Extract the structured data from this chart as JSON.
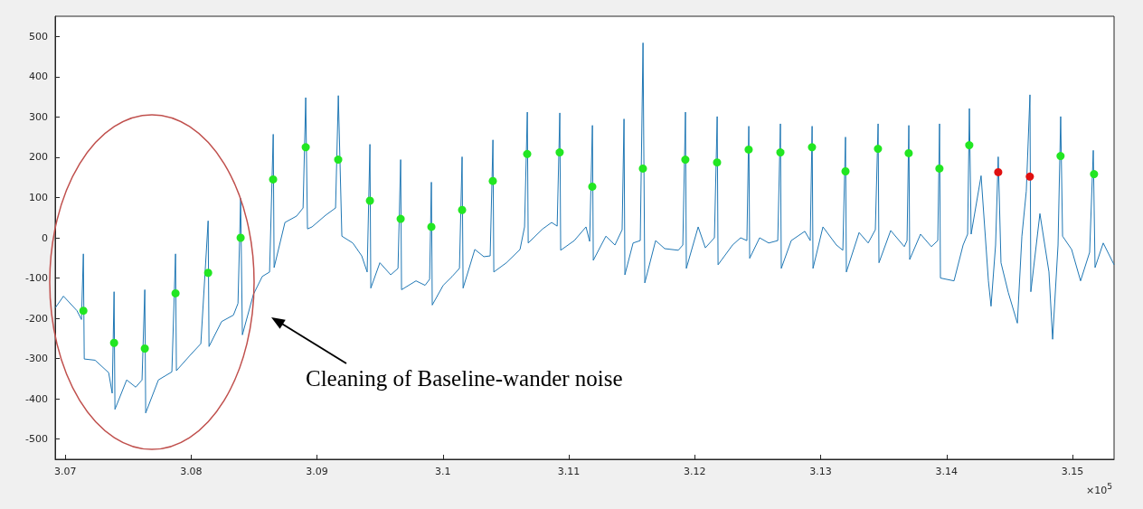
{
  "chart_data": {
    "type": "line",
    "xlim": [
      3.0692,
      3.1533
    ],
    "ylim": [
      -550,
      550
    ],
    "xticks": [
      3.07,
      3.08,
      3.09,
      3.1,
      3.11,
      3.12,
      3.13,
      3.14,
      3.15
    ],
    "yticks": [
      -500,
      -400,
      -300,
      -200,
      -100,
      0,
      100,
      200,
      300,
      400,
      500
    ],
    "grid": false,
    "annotations": [
      "×10$^{5}$",
      "Cleaning of Baseline-wander noise"
    ],
    "series": [
      {
        "marker": "none",
        "color": "#1f77b4",
        "x": [
          3.06921,
          3.06986,
          3.07093,
          3.07129,
          3.07144,
          3.07151,
          3.07237,
          3.07345,
          3.07373,
          3.07388,
          3.07395,
          3.07488,
          3.0756,
          3.0761,
          3.07632,
          3.07639,
          3.0774,
          3.07847,
          3.07876,
          3.07883,
          3.07991,
          3.08077,
          3.08135,
          3.08142,
          3.08242,
          3.08336,
          3.08372,
          3.08393,
          3.08407,
          3.08494,
          3.08565,
          3.08623,
          3.08652,
          3.08659,
          3.08745,
          3.08838,
          3.08889,
          3.0891,
          3.08924,
          3.0896,
          3.09068,
          3.09147,
          3.09169,
          3.09197,
          3.09284,
          3.09355,
          3.09398,
          3.0942,
          3.09427,
          3.09499,
          3.09585,
          3.09643,
          3.09664,
          3.09671,
          3.09786,
          3.09858,
          3.09894,
          3.09908,
          3.09915,
          3.10002,
          3.10073,
          3.10131,
          3.10152,
          3.1016,
          3.10253,
          3.10325,
          3.10375,
          3.10397,
          3.10404,
          3.10504,
          3.10612,
          3.10648,
          3.1067,
          3.10677,
          3.10792,
          3.10863,
          3.10907,
          3.10928,
          3.10935,
          3.11043,
          3.11136,
          3.11165,
          3.11187,
          3.11194,
          3.11294,
          3.11366,
          3.11423,
          3.11438,
          3.11445,
          3.1151,
          3.11567,
          3.11589,
          3.11603,
          3.11689,
          3.11761,
          3.11869,
          3.11905,
          3.11926,
          3.11933,
          3.12027,
          3.12084,
          3.12156,
          3.12178,
          3.12185,
          3.123,
          3.12364,
          3.12414,
          3.12429,
          3.12436,
          3.12515,
          3.12587,
          3.12659,
          3.1268,
          3.12687,
          3.12766,
          3.12874,
          3.12917,
          3.12932,
          3.12939,
          3.13018,
          3.13125,
          3.13176,
          3.13197,
          3.13204,
          3.13305,
          3.13377,
          3.13434,
          3.13456,
          3.13463,
          3.13556,
          3.13664,
          3.13686,
          3.137,
          3.13707,
          3.13793,
          3.13879,
          3.1393,
          3.13944,
          3.13951,
          3.14059,
          3.14131,
          3.14167,
          3.14181,
          3.14195,
          3.14274,
          3.14332,
          3.14353,
          3.14389,
          3.1441,
          3.14432,
          3.1449,
          3.14562,
          3.14598,
          3.14633,
          3.14662,
          3.14669,
          3.14741,
          3.14813,
          3.14842,
          3.14885,
          3.14906,
          3.14921,
          3.14993,
          3.15064,
          3.15136,
          3.15165,
          3.15179,
          3.15244,
          3.1533
        ],
        "values": [
          -174,
          -145,
          -181,
          -203,
          -40,
          -301,
          -304,
          -335,
          -386,
          -134,
          -426,
          -353,
          -371,
          -353,
          -129,
          -435,
          -353,
          -333,
          -40,
          -330,
          -292,
          -263,
          42,
          -270,
          -208,
          -192,
          -163,
          98,
          -241,
          -141,
          -96,
          -85,
          257,
          -74,
          38,
          54,
          74,
          348,
          22,
          27,
          56,
          74,
          353,
          4,
          -13,
          -45,
          -85,
          232,
          -125,
          -62,
          -92,
          -76,
          194,
          -129,
          -107,
          -118,
          -103,
          138,
          -167,
          -118,
          -96,
          -76,
          201,
          -125,
          -29,
          -47,
          -45,
          243,
          -85,
          -62,
          -29,
          27,
          312,
          -13,
          22,
          38,
          29,
          310,
          -31,
          -7,
          27,
          -9,
          279,
          -56,
          4,
          -18,
          20,
          295,
          -92,
          -13,
          -7,
          484,
          -112,
          -7,
          -27,
          -31,
          -18,
          312,
          -76,
          27,
          -25,
          0,
          301,
          -67,
          -18,
          0,
          -7,
          277,
          -51,
          0,
          -13,
          -7,
          283,
          -76,
          -7,
          16,
          -7,
          277,
          -76,
          27,
          -18,
          -31,
          250,
          -85,
          13,
          -13,
          20,
          283,
          -62,
          18,
          -22,
          -7,
          279,
          -54,
          9,
          -22,
          -7,
          283,
          -100,
          -107,
          -18,
          9,
          321,
          9,
          154,
          -107,
          -170,
          -18,
          201,
          -62,
          -136,
          -212,
          4,
          116,
          355,
          -134,
          60,
          -85,
          -252,
          -18,
          301,
          4,
          -29,
          -107,
          -36,
          217,
          -74,
          -13,
          -67
        ]
      },
      {
        "type": "scatter",
        "marker": "circle",
        "color": "#22e622",
        "x": [
          3.07144,
          3.07388,
          3.07632,
          3.07876,
          3.08135,
          3.08393,
          3.08651,
          3.0891,
          3.09168,
          3.0942,
          3.09664,
          3.09908,
          3.10152,
          3.10396,
          3.10669,
          3.10927,
          3.11186,
          3.11588,
          3.11925,
          3.12177,
          3.12428,
          3.1268,
          3.12931,
          3.13197,
          3.13455,
          3.13699,
          3.13943,
          3.1418,
          3.14905,
          3.15171
        ],
        "values": [
          -181,
          -261,
          -275,
          -138,
          -87,
          0,
          145,
          225,
          194,
          92,
          47,
          27,
          69,
          141,
          208,
          212,
          127,
          172,
          194,
          187,
          219,
          212,
          225,
          165,
          221,
          210,
          172,
          230,
          203,
          158
        ]
      },
      {
        "type": "scatter",
        "marker": "circle",
        "color": "#e01010",
        "x": [
          3.1441,
          3.14661
        ],
        "values": [
          163,
          152
        ]
      }
    ]
  }
}
